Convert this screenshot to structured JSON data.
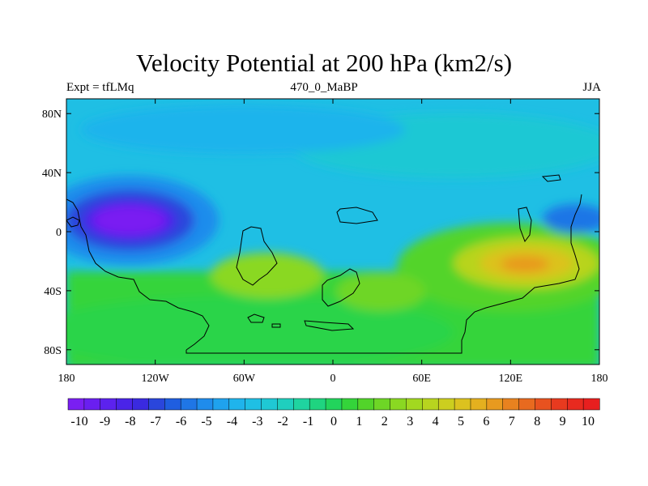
{
  "chart_data": {
    "type": "heatmap",
    "title": "Velocity Potential at 200 hPa (km2/s)",
    "subtitle_left": "Expt = tfLMq",
    "subtitle_center": "470_0_MaBP",
    "subtitle_right": "JJA",
    "x_ticks": [
      "180",
      "120W",
      "60W",
      "0",
      "60E",
      "120E",
      "180"
    ],
    "y_ticks": [
      "80N",
      "40N",
      "0",
      "40S",
      "80S"
    ],
    "xlim": [
      -180,
      180
    ],
    "ylim": [
      -90,
      90
    ],
    "colorbar": {
      "min": -10,
      "max": 10,
      "labels": [
        "-10",
        "-9",
        "-8",
        "-7",
        "-6",
        "-5",
        "-4",
        "-3",
        "-2",
        "-1",
        "0",
        "1",
        "2",
        "3",
        "4",
        "5",
        "6",
        "7",
        "8",
        "9",
        "10"
      ],
      "colors": [
        "#7a1ff2",
        "#6a1ff0",
        "#5c22ee",
        "#4a24e8",
        "#3a2ae0",
        "#2a46dc",
        "#1f5ee0",
        "#1f76e6",
        "#1f8cec",
        "#1fa2ee",
        "#1fb4ec",
        "#1fbfe4",
        "#1fc8d4",
        "#1fcfbe",
        "#1fd4a0",
        "#1fd480",
        "#22d45c",
        "#34d43a",
        "#52d42a",
        "#6ed626",
        "#8ad822",
        "#a2d820",
        "#b8d41f",
        "#ccce1f",
        "#dcc21f",
        "#e4b01f",
        "#e89a1f",
        "#e8821f",
        "#e86a1f",
        "#e8521f",
        "#e83a1f",
        "#e82a1f",
        "#e81f1f"
      ]
    },
    "features": [
      {
        "name": "negative center",
        "lon": -140,
        "lat": 8,
        "value": -10
      },
      {
        "name": "positive center",
        "lon": 135,
        "lat": -28,
        "value": 8
      }
    ]
  }
}
